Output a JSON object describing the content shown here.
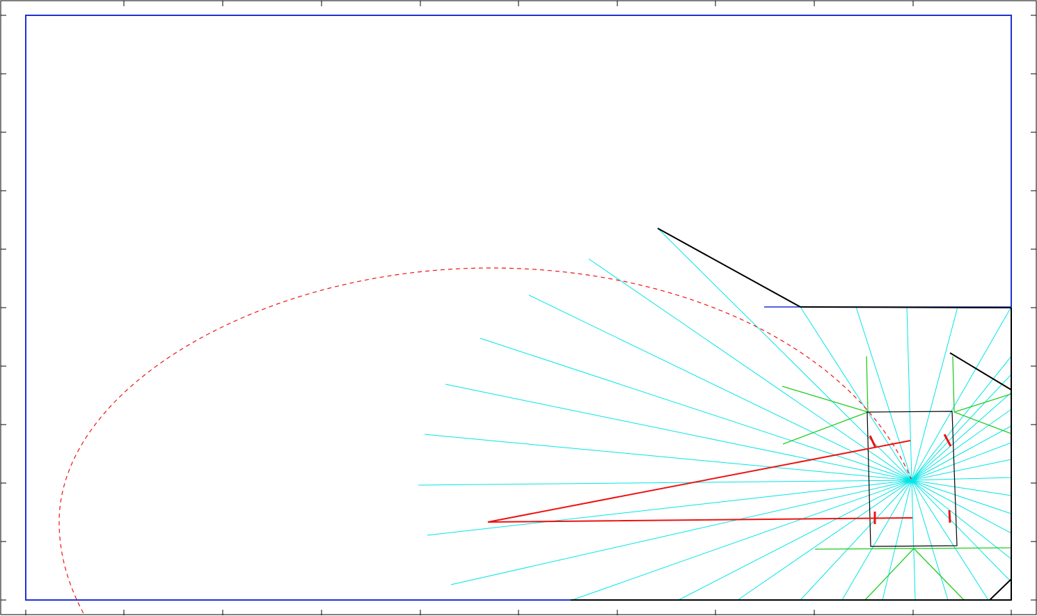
{
  "colors": {
    "background": "#ffffff",
    "axes_frame": "#000000",
    "boundary": "#1f2fd6",
    "rays": "#00e5e5",
    "rays_green": "#22cc22",
    "robot_path": "#ee1111",
    "obstacle": "#000000"
  },
  "diagram": {
    "type": "plot-view",
    "elements": [
      "map-boundary",
      "obstacle-walls",
      "sensor-rays",
      "green-rays",
      "robot-body",
      "robot-wheels",
      "planned-path",
      "range-ellipse"
    ]
  }
}
